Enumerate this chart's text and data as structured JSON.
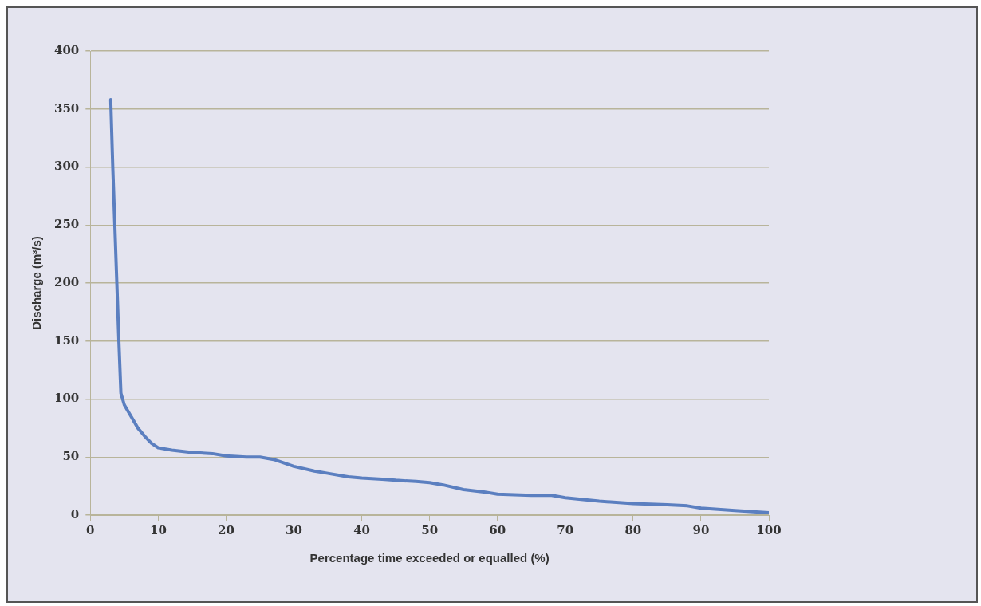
{
  "chart_data": {
    "type": "line",
    "xlabel": "Percentage time exceeded or equalled (%)",
    "ylabel": "Discharge (m³/s)",
    "x": [
      3,
      3.3,
      3.6,
      3.9,
      4.2,
      4.5,
      5,
      6,
      7,
      8,
      9,
      10,
      12,
      15,
      18,
      20,
      23,
      25,
      27,
      30,
      33,
      35,
      38,
      40,
      43,
      45,
      48,
      50,
      52,
      55,
      58,
      60,
      65,
      68,
      70,
      75,
      80,
      85,
      88,
      90,
      95,
      100
    ],
    "series": [
      {
        "color": "#5b7fc0",
        "values": [
          358,
          300,
          250,
          200,
          150,
          105,
          95,
          85,
          75,
          68,
          62,
          58,
          56,
          54,
          53,
          51,
          50,
          50,
          48,
          42,
          38,
          36,
          33,
          32,
          31,
          30,
          29,
          28,
          26,
          22,
          20,
          18,
          17,
          17,
          15,
          12,
          10,
          9,
          8,
          6,
          4,
          2
        ]
      }
    ],
    "xlim": [
      0,
      100
    ],
    "xticks": [
      0,
      10,
      20,
      30,
      40,
      50,
      60,
      70,
      80,
      90,
      100
    ],
    "ylim": [
      0,
      400
    ],
    "yticks": [
      0,
      50,
      100,
      150,
      200,
      250,
      300,
      350,
      400
    ],
    "grid": "y",
    "legend": false,
    "marker": "none",
    "line_style": "solid"
  }
}
